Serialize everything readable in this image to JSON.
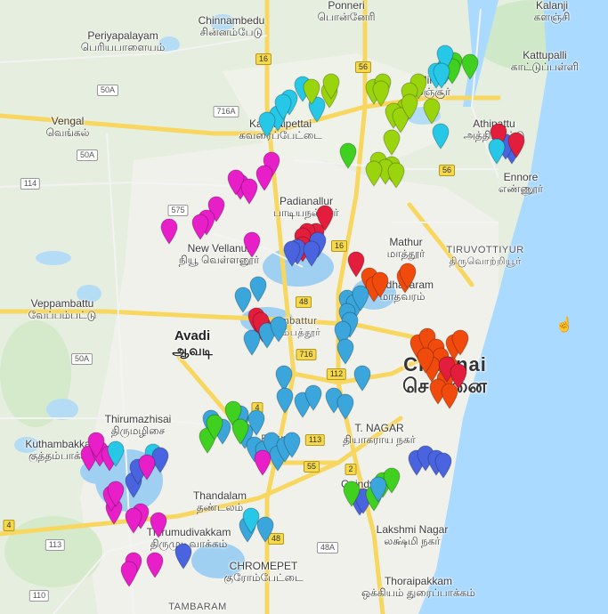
{
  "colors": {
    "cyan": "#27c7e8",
    "skyblue": "#3aa6dc",
    "green": "#40d020",
    "lime": "#9ad40c",
    "blue": "#4a64e0",
    "red": "#e21e3c",
    "orange": "#f04a0c",
    "magenta": "#e81ec8",
    "sea": "#aadaff",
    "water": "#9fd0f2",
    "land": "#e6eedf",
    "urban": "#f2f2ee",
    "road_major": "#f8d760",
    "road_minor": "#ffffff"
  },
  "places": [
    {
      "en": "Ponneri",
      "ta": "பொன்னேரி"
    },
    {
      "en": "Kalanji",
      "ta": "களஞ்சி"
    },
    {
      "en": "Chinnambedu",
      "ta": "சின்னம்பேடு"
    },
    {
      "en": "Periyapalayam",
      "ta": "பெரியபாளையம்"
    },
    {
      "en": "Kattupalli",
      "ta": "காட்டுப்பள்ளி"
    },
    {
      "en": "Minjur",
      "ta": "மீஞ்சூர்"
    },
    {
      "en": "Vengal",
      "ta": "வெங்கல்"
    },
    {
      "en": "Kavaraipettai",
      "ta": "கவரைப்பேட்டை"
    },
    {
      "en": "Athipattu",
      "ta": "அத்திப்பட்டு"
    },
    {
      "en": "Ennore",
      "ta": "எண்ணூர்"
    },
    {
      "en": "Padianallur",
      "ta": "பாடியநல்லூர்"
    },
    {
      "en": "New Vellanur",
      "ta": "நியூ வெள்ளனூர்"
    },
    {
      "en": "Mathur",
      "ta": "மாத்தூர்"
    },
    {
      "en": "TIRUVOTTIYUR",
      "ta": "திருவொற்றியூர்"
    },
    {
      "en": "Veppambattu",
      "ta": "வேப்பம்பட்டு"
    },
    {
      "en": "Avadi",
      "ta": "ஆவடி"
    },
    {
      "en": "Ambattur",
      "ta": "அம்பத்தூர்"
    },
    {
      "en": "Madhavaram",
      "ta": "மாதவரம்"
    },
    {
      "en": "Chennai",
      "ta": "சென்னை"
    },
    {
      "en": "Thirumazhisai",
      "ta": "திருமழிசை"
    },
    {
      "en": "T. NAGAR",
      "ta": "தியாகராய நகர்"
    },
    {
      "en": "Kuthambakkam",
      "ta": "குத்தம்பாக்கம்"
    },
    {
      "en": "Porur",
      "ta": "போரூர்"
    },
    {
      "en": "Thandalam",
      "ta": "தண்டலம்"
    },
    {
      "en": "Guindy",
      "ta": "கிண்டி"
    },
    {
      "en": "Thirumudivakkam",
      "ta": "திருமுடிவாக்கம்"
    },
    {
      "en": "Lakshmi Nagar",
      "ta": "லக்ஷ்மி நகர்"
    },
    {
      "en": "CHROMEPET",
      "ta": "குரோம்பேட்டை"
    },
    {
      "en": "Thoraipakkam",
      "ta": "ஒக்கியம் துரைப்பாக்கம்"
    },
    {
      "en": "TAMBARAM",
      "ta": ""
    }
  ],
  "road_shields": [
    "50A",
    "50A",
    "114",
    "575",
    "716A",
    "16",
    "56",
    "56",
    "48",
    "16",
    "716",
    "112",
    "4",
    "113",
    "55",
    "2",
    "50A",
    "113",
    "4",
    "48",
    "48A",
    "110"
  ],
  "markers": [
    {
      "c": "cyan"
    },
    {
      "c": "cyan"
    },
    {
      "c": "cyan"
    },
    {
      "c": "green"
    },
    {
      "c": "green"
    },
    {
      "c": "green"
    },
    {
      "c": "cyan"
    },
    {
      "c": "cyan"
    },
    {
      "c": "lime"
    },
    {
      "c": "lime"
    },
    {
      "c": "lime"
    },
    {
      "c": "lime"
    },
    {
      "c": "lime"
    },
    {
      "c": "lime"
    },
    {
      "c": "lime"
    },
    {
      "c": "lime"
    },
    {
      "c": "lime"
    },
    {
      "c": "lime"
    },
    {
      "c": "cyan"
    },
    {
      "c": "cyan"
    },
    {
      "c": "cyan"
    },
    {
      "c": "cyan"
    },
    {
      "c": "cyan"
    },
    {
      "c": "cyan"
    },
    {
      "c": "lime"
    },
    {
      "c": "lime"
    },
    {
      "c": "lime"
    },
    {
      "c": "green"
    },
    {
      "c": "lime"
    },
    {
      "c": "lime"
    },
    {
      "c": "lime"
    },
    {
      "c": "lime"
    },
    {
      "c": "lime"
    },
    {
      "c": "lime"
    },
    {
      "c": "cyan"
    },
    {
      "c": "blue"
    },
    {
      "c": "blue"
    },
    {
      "c": "red"
    },
    {
      "c": "red"
    },
    {
      "c": "cyan"
    },
    {
      "c": "magenta"
    },
    {
      "c": "magenta"
    },
    {
      "c": "magenta"
    },
    {
      "c": "magenta"
    },
    {
      "c": "magenta"
    },
    {
      "c": "magenta"
    },
    {
      "c": "magenta"
    },
    {
      "c": "magenta"
    },
    {
      "c": "magenta"
    },
    {
      "c": "magenta"
    },
    {
      "c": "red"
    },
    {
      "c": "red"
    },
    {
      "c": "red"
    },
    {
      "c": "red"
    },
    {
      "c": "red"
    },
    {
      "c": "blue"
    },
    {
      "c": "blue"
    },
    {
      "c": "blue"
    },
    {
      "c": "blue"
    },
    {
      "c": "red"
    },
    {
      "c": "orange"
    },
    {
      "c": "orange"
    },
    {
      "c": "orange"
    },
    {
      "c": "orange"
    },
    {
      "c": "orange"
    },
    {
      "c": "skyblue"
    },
    {
      "c": "skyblue"
    },
    {
      "c": "skyblue"
    },
    {
      "c": "skyblue"
    },
    {
      "c": "skyblue"
    },
    {
      "c": "skyblue"
    },
    {
      "c": "skyblue"
    },
    {
      "c": "skyblue"
    },
    {
      "c": "red"
    },
    {
      "c": "red"
    },
    {
      "c": "red"
    },
    {
      "c": "skyblue"
    },
    {
      "c": "skyblue"
    },
    {
      "c": "skyblue"
    },
    {
      "c": "skyblue"
    },
    {
      "c": "orange"
    },
    {
      "c": "orange"
    },
    {
      "c": "orange"
    },
    {
      "c": "orange"
    },
    {
      "c": "orange"
    },
    {
      "c": "orange"
    },
    {
      "c": "orange"
    },
    {
      "c": "orange"
    },
    {
      "c": "orange"
    },
    {
      "c": "orange"
    },
    {
      "c": "red"
    },
    {
      "c": "red"
    },
    {
      "c": "orange"
    },
    {
      "c": "orange"
    },
    {
      "c": "skyblue"
    },
    {
      "c": "skyblue"
    },
    {
      "c": "skyblue"
    },
    {
      "c": "skyblue"
    },
    {
      "c": "skyblue"
    },
    {
      "c": "skyblue"
    },
    {
      "c": "skyblue"
    },
    {
      "c": "skyblue"
    },
    {
      "c": "skyblue"
    },
    {
      "c": "skyblue"
    },
    {
      "c": "skyblue"
    },
    {
      "c": "skyblue"
    },
    {
      "c": "green"
    },
    {
      "c": "green"
    },
    {
      "c": "green"
    },
    {
      "c": "green"
    },
    {
      "c": "skyblue"
    },
    {
      "c": "skyblue"
    },
    {
      "c": "skyblue"
    },
    {
      "c": "skyblue"
    },
    {
      "c": "skyblue"
    },
    {
      "c": "skyblue"
    },
    {
      "c": "skyblue"
    },
    {
      "c": "magenta"
    },
    {
      "c": "magenta"
    },
    {
      "c": "magenta"
    },
    {
      "c": "magenta"
    },
    {
      "c": "magenta"
    },
    {
      "c": "cyan"
    },
    {
      "c": "cyan"
    },
    {
      "c": "blue"
    },
    {
      "c": "blue"
    },
    {
      "c": "blue"
    },
    {
      "c": "magenta"
    },
    {
      "c": "magenta"
    },
    {
      "c": "magenta"
    },
    {
      "c": "magenta"
    },
    {
      "c": "magenta"
    },
    {
      "c": "magenta"
    },
    {
      "c": "magenta"
    },
    {
      "c": "magenta"
    },
    {
      "c": "magenta"
    },
    {
      "c": "magenta"
    },
    {
      "c": "blue"
    },
    {
      "c": "blue"
    },
    {
      "c": "blue"
    },
    {
      "c": "blue"
    },
    {
      "c": "blue"
    },
    {
      "c": "blue"
    },
    {
      "c": "blue"
    },
    {
      "c": "green"
    },
    {
      "c": "green"
    },
    {
      "c": "green"
    },
    {
      "c": "green"
    },
    {
      "c": "skyblue"
    },
    {
      "c": "skyblue"
    },
    {
      "c": "skyblue"
    },
    {
      "c": "cyan"
    }
  ]
}
